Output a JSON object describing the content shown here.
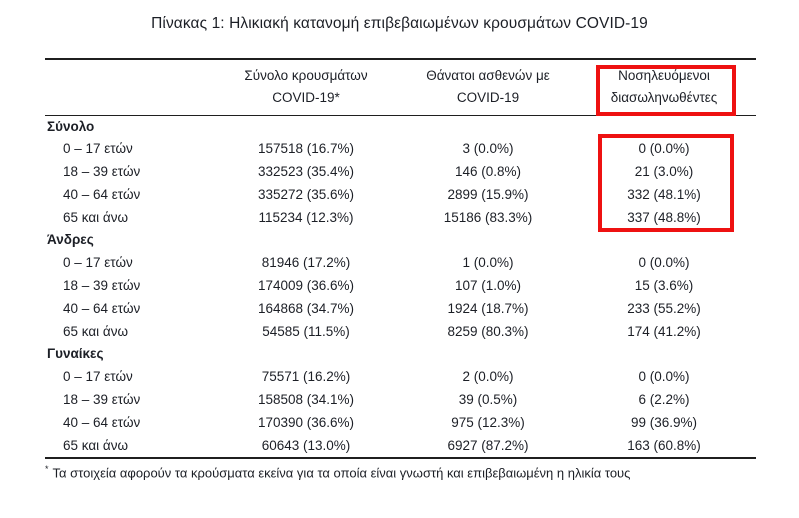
{
  "colors": {
    "highlight": "#ee1111",
    "text": "#1c1f26",
    "rule": "#1f1f1f"
  },
  "title": "Πίνακας 1: Ηλικιακή κατανομή επιβεβαιωμένων κρουσμάτων COVID-19",
  "table": {
    "headers": {
      "cases": {
        "line1": "Σύνολο κρουσμάτων",
        "line2": "COVID-19*"
      },
      "deaths": {
        "line1": "Θάνατοι ασθενών με",
        "line2": "COVID-19"
      },
      "intubated": {
        "line1": "Νοσηλευόμενοι",
        "line2": "διασωληνωθέντες"
      }
    },
    "sections": [
      {
        "label": "Σύνολο",
        "rows": [
          {
            "age": "0 – 17 ετών",
            "cases": "157518 (16.7%)",
            "deaths": "3 (0.0%)",
            "intubated": "0 (0.0%)"
          },
          {
            "age": "18 – 39 ετών",
            "cases": "332523 (35.4%)",
            "deaths": "146 (0.8%)",
            "intubated": "21 (3.0%)"
          },
          {
            "age": "40 – 64 ετών",
            "cases": "335272 (35.6%)",
            "deaths": "2899 (15.9%)",
            "intubated": "332 (48.1%)"
          },
          {
            "age": "65 και άνω",
            "cases": "115234 (12.3%)",
            "deaths": "15186 (83.3%)",
            "intubated": "337 (48.8%)"
          }
        ]
      },
      {
        "label": "Άνδρες",
        "rows": [
          {
            "age": "0 – 17 ετών",
            "cases": "81946 (17.2%)",
            "deaths": "1 (0.0%)",
            "intubated": "0 (0.0%)"
          },
          {
            "age": "18 – 39 ετών",
            "cases": "174009 (36.6%)",
            "deaths": "107 (1.0%)",
            "intubated": "15 (3.6%)"
          },
          {
            "age": "40 – 64 ετών",
            "cases": "164868 (34.7%)",
            "deaths": "1924 (18.7%)",
            "intubated": "233 (55.2%)"
          },
          {
            "age": "65 και άνω",
            "cases": "54585 (11.5%)",
            "deaths": "8259 (80.3%)",
            "intubated": "174 (41.2%)"
          }
        ]
      },
      {
        "label": "Γυναίκες",
        "rows": [
          {
            "age": "0 – 17 ετών",
            "cases": "75571 (16.2%)",
            "deaths": "2 (0.0%)",
            "intubated": "0 (0.0%)"
          },
          {
            "age": "18 – 39 ετών",
            "cases": "158508 (34.1%)",
            "deaths": "39 (0.5%)",
            "intubated": "6 (2.2%)"
          },
          {
            "age": "40 – 64 ετών",
            "cases": "170390 (36.6%)",
            "deaths": "975 (12.3%)",
            "intubated": "99 (36.9%)"
          },
          {
            "age": "65 και άνω",
            "cases": "60643 (13.0%)",
            "deaths": "6927 (87.2%)",
            "intubated": "163 (60.8%)"
          }
        ]
      }
    ]
  },
  "footnote": {
    "marker": "*",
    "text": "Τα στοιχεία αφορούν τα κρούσματα εκείνα για τα οποία είναι γνωστή και επιβεβαιωμένη η ηλικία τους"
  }
}
